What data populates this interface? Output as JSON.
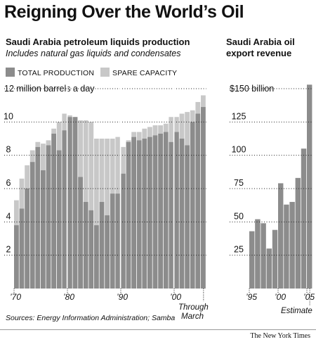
{
  "headline": "Reigning Over the World’s Oil",
  "credit": "The New York Times",
  "source": "Sources: Energy Information Administration; Samba",
  "colors": {
    "total": "#8c8c8c",
    "spare": "#c8c8c8",
    "revenue": "#8c8c8c"
  },
  "chart_data": [
    {
      "type": "bar",
      "stacked": true,
      "title": "Saudi Arabia petroleum liquids production",
      "subtitle": "Includes natural gas liquids and condensates",
      "ylabel": "12 million barrels a day",
      "ylim": [
        0,
        12
      ],
      "ytick_labels": [
        "2",
        "4",
        "6",
        "8",
        "10"
      ],
      "xtick_labels": [
        "’70",
        "’80",
        "’90",
        "’00"
      ],
      "xtick_years": [
        1970,
        1980,
        1990,
        2000
      ],
      "annotation": "Through March",
      "legend": [
        "TOTAL PRODUCTION",
        "SPARE CAPACITY"
      ],
      "categories": [
        1970,
        1971,
        1972,
        1973,
        1974,
        1975,
        1976,
        1977,
        1978,
        1979,
        1980,
        1981,
        1982,
        1983,
        1984,
        1985,
        1986,
        1987,
        1988,
        1989,
        1990,
        1991,
        1992,
        1993,
        1994,
        1995,
        1996,
        1997,
        1998,
        1999,
        2000,
        2001,
        2002,
        2003,
        2004,
        2005
      ],
      "series": [
        {
          "name": "TOTAL PRODUCTION",
          "values": [
            3.8,
            4.8,
            6.0,
            7.6,
            8.5,
            7.1,
            8.6,
            9.3,
            8.3,
            9.5,
            10.3,
            10.3,
            6.7,
            5.2,
            4.7,
            3.8,
            5.2,
            4.4,
            5.7,
            5.7,
            6.9,
            8.8,
            9.1,
            8.9,
            9.0,
            9.1,
            9.2,
            9.3,
            9.4,
            8.8,
            9.4,
            9.0,
            8.6,
            10.0,
            10.5,
            10.9
          ]
        },
        {
          "name": "SPARE CAPACITY",
          "values": [
            1.5,
            1.8,
            1.4,
            0.7,
            0.3,
            1.6,
            0.3,
            0.3,
            1.7,
            1.0,
            0.1,
            0.0,
            3.4,
            4.9,
            5.3,
            5.2,
            3.8,
            4.6,
            3.3,
            3.4,
            1.6,
            0.1,
            0.3,
            0.5,
            0.6,
            0.6,
            0.6,
            0.5,
            0.5,
            1.5,
            0.9,
            1.5,
            2.0,
            0.7,
            0.7,
            0.7
          ]
        }
      ]
    },
    {
      "type": "bar",
      "title": "Saudi Arabia oil export revenue",
      "ylabel": "$150 billion",
      "ylim": [
        0,
        150
      ],
      "ytick_labels": [
        "25",
        "50",
        "75",
        "100",
        "125"
      ],
      "xtick_labels": [
        "’95",
        "’00",
        "’05"
      ],
      "xtick_years": [
        1995,
        2000,
        2005
      ],
      "annotation": "Estimate",
      "categories": [
        1995,
        1996,
        1997,
        1998,
        1999,
        2000,
        2001,
        2002,
        2003,
        2004,
        2005
      ],
      "values": [
        43,
        52,
        49,
        30,
        44,
        79,
        63,
        65,
        83,
        105,
        153
      ]
    }
  ]
}
